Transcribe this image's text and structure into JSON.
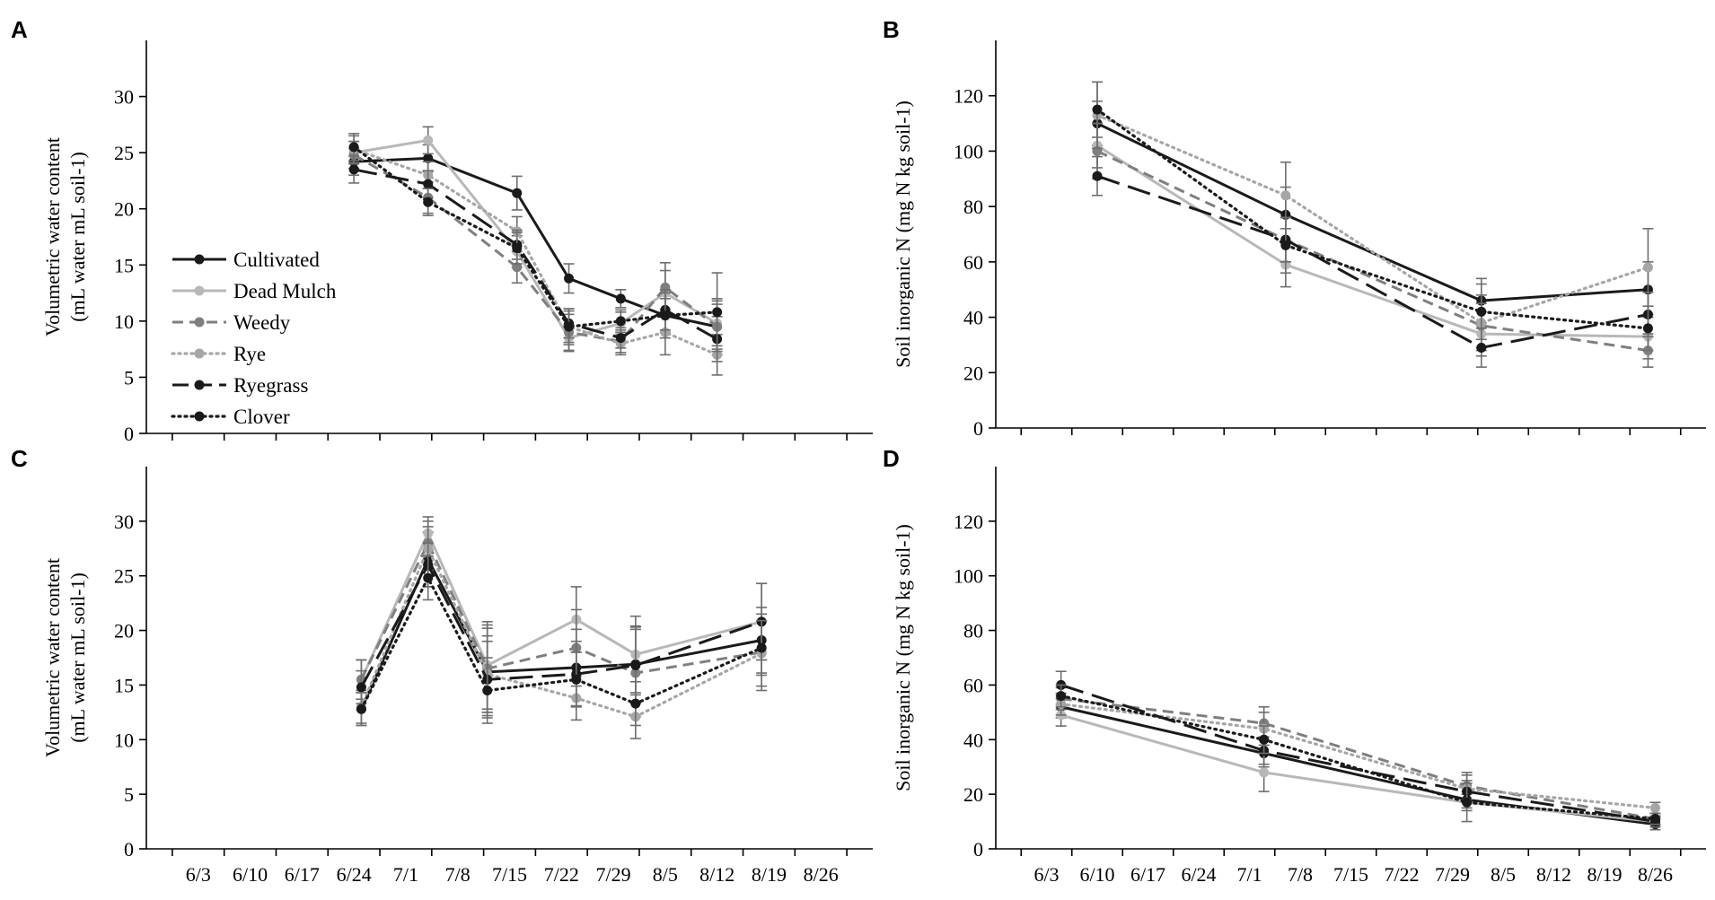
{
  "legend": [
    "Cultivated",
    "Dead Mulch",
    "Weedy",
    "Rye",
    "Ryegrass",
    "Clover"
  ],
  "styles": {
    "Cultivated": {
      "color": "#1a1a1a",
      "dash": "solid"
    },
    "Dead Mulch": {
      "color": "#b8b8b8",
      "dash": "solid"
    },
    "Weedy": {
      "color": "#7f7f7f",
      "dash": "dashed"
    },
    "Rye": {
      "color": "#a6a6a6",
      "dash": "dotted"
    },
    "Ryegrass": {
      "color": "#1a1a1a",
      "dash": "longdash"
    },
    "Clover": {
      "color": "#1a1a1a",
      "dash": "dotted"
    }
  },
  "chart_data": [
    {
      "panel": "A",
      "type": "line",
      "ylabel": "Volumetric water content",
      "ylabel_unit": "(mL water mL soil-1)",
      "ylim": [
        0,
        35
      ],
      "yticks": [
        0,
        5,
        10,
        15,
        20,
        25,
        30
      ],
      "xticks": [
        "6/3",
        "6/10",
        "6/17",
        "6/24",
        "7/1",
        "7/8",
        "7/15",
        "7/22",
        "7/29",
        "8/5",
        "8/12",
        "8/19",
        "8/26"
      ],
      "show_x_tick_labels": false,
      "x_unit": "day offset from 6/3",
      "series": [
        {
          "name": "Cultivated",
          "x": [
            21,
            31,
            43,
            50,
            57,
            63,
            70
          ],
          "values": [
            24.2,
            24.5,
            21.4,
            13.8,
            12.0,
            10.5,
            9.5
          ],
          "err": [
            1.2,
            1.2,
            1.5,
            1.3,
            0.8,
            1.5,
            2.5
          ]
        },
        {
          "name": "Dead Mulch",
          "x": [
            21,
            31,
            43,
            50,
            57,
            63,
            70
          ],
          "values": [
            25.0,
            26.1,
            16.2,
            8.5,
            9.8,
            12.5,
            9.8
          ],
          "err": [
            1.0,
            1.2,
            1.4,
            1.2,
            1.0,
            2.0,
            2.0
          ]
        },
        {
          "name": "Weedy",
          "x": [
            21,
            31,
            43,
            50,
            57,
            63,
            70
          ],
          "values": [
            24.8,
            21.0,
            14.8,
            9.0,
            8.2,
            13.0,
            9.5
          ],
          "err": [
            1.2,
            1.4,
            1.4,
            1.6,
            1.0,
            2.2,
            2.0
          ]
        },
        {
          "name": "Rye",
          "x": [
            21,
            31,
            43,
            50,
            57,
            63,
            70
          ],
          "values": [
            25.3,
            23.0,
            18.0,
            9.5,
            8.0,
            9.0,
            7.0
          ],
          "err": [
            1.2,
            1.2,
            1.3,
            1.4,
            1.0,
            2.0,
            1.8
          ]
        },
        {
          "name": "Ryegrass",
          "x": [
            21,
            31,
            43,
            50,
            57,
            63,
            70
          ],
          "values": [
            23.5,
            22.2,
            16.8,
            9.8,
            8.5,
            11.0,
            8.4
          ],
          "err": [
            1.2,
            1.2,
            1.3,
            1.3,
            0.9,
            1.8,
            2.0
          ]
        },
        {
          "name": "Clover",
          "x": [
            21,
            31,
            43,
            50,
            57,
            63,
            70
          ],
          "values": [
            25.5,
            20.6,
            16.5,
            9.5,
            10.0,
            10.5,
            10.8
          ],
          "err": [
            1.2,
            1.2,
            1.4,
            1.6,
            1.0,
            2.0,
            3.5
          ]
        }
      ]
    },
    {
      "panel": "B",
      "type": "line",
      "ylabel": "Soil inorganic N",
      "ylabel_unit": "(mg N kg soil-1)",
      "ylim": [
        0,
        140
      ],
      "yticks": [
        0,
        20,
        40,
        60,
        80,
        100,
        120
      ],
      "xticks": [
        "6/3",
        "6/10",
        "6/17",
        "6/24",
        "7/1",
        "7/8",
        "7/15",
        "7/22",
        "7/29",
        "8/5",
        "8/12",
        "8/19",
        "8/26"
      ],
      "show_x_tick_labels": false,
      "x_unit": "day offset from 6/3",
      "series": [
        {
          "name": "Cultivated",
          "x": [
            7,
            33,
            60,
            83
          ],
          "values": [
            110,
            77,
            46,
            50
          ],
          "err": [
            8,
            10,
            8,
            10
          ]
        },
        {
          "name": "Dead Mulch",
          "x": [
            7,
            33,
            60,
            83
          ],
          "values": [
            102,
            59,
            34,
            33
          ],
          "err": [
            8,
            8,
            8,
            8
          ]
        },
        {
          "name": "Weedy",
          "x": [
            7,
            33,
            60,
            83
          ],
          "values": [
            100,
            68,
            37,
            28
          ],
          "err": [
            10,
            8,
            8,
            6
          ]
        },
        {
          "name": "Rye",
          "x": [
            7,
            33,
            60,
            83
          ],
          "values": [
            113,
            84,
            38,
            58
          ],
          "err": [
            12,
            12,
            10,
            14
          ]
        },
        {
          "name": "Ryegrass",
          "x": [
            7,
            33,
            60,
            83
          ],
          "values": [
            91,
            68,
            29,
            41
          ],
          "err": [
            7,
            8,
            7,
            8
          ]
        },
        {
          "name": "Clover",
          "x": [
            7,
            33,
            60,
            83
          ],
          "values": [
            115,
            66,
            42,
            36
          ],
          "err": [
            10,
            10,
            10,
            8
          ]
        }
      ]
    },
    {
      "panel": "C",
      "type": "line",
      "ylabel": "Volumetric water content",
      "ylabel_unit": "(mL water mL soil-1)",
      "ylim": [
        0,
        35
      ],
      "yticks": [
        0,
        5,
        10,
        15,
        20,
        25,
        30
      ],
      "xticks": [
        "6/3",
        "6/10",
        "6/17",
        "6/24",
        "7/1",
        "7/8",
        "7/15",
        "7/22",
        "7/29",
        "8/5",
        "8/12",
        "8/19",
        "8/26"
      ],
      "show_x_tick_labels": true,
      "x_unit": "day offset from 6/3",
      "series": [
        {
          "name": "Cultivated",
          "x": [
            22,
            31,
            39,
            51,
            59,
            76
          ],
          "values": [
            12.8,
            26.5,
            16.2,
            16.6,
            16.9,
            19.1
          ],
          "err": [
            1.5,
            2.5,
            4.0,
            3.5,
            3.5,
            3.0
          ]
        },
        {
          "name": "Dead Mulch",
          "x": [
            22,
            31,
            39,
            51,
            59,
            76
          ],
          "values": [
            15.5,
            28.9,
            16.8,
            21.0,
            17.8,
            20.8
          ],
          "err": [
            1.8,
            1.5,
            4.0,
            3.0,
            3.5,
            3.5
          ]
        },
        {
          "name": "Weedy",
          "x": [
            22,
            31,
            39,
            51,
            59,
            76
          ],
          "values": [
            15.5,
            28.0,
            16.5,
            18.4,
            16.1,
            18.0
          ],
          "err": [
            1.8,
            2.0,
            4.0,
            3.5,
            4.0,
            3.5
          ]
        },
        {
          "name": "Rye",
          "x": [
            22,
            31,
            39,
            51,
            59,
            76
          ],
          "values": [
            13.0,
            27.5,
            16.0,
            13.8,
            12.1,
            17.9
          ],
          "err": [
            1.5,
            2.0,
            3.5,
            2.0,
            2.0,
            3.0
          ]
        },
        {
          "name": "Ryegrass",
          "x": [
            22,
            31,
            39,
            51,
            59,
            76
          ],
          "values": [
            14.8,
            26.0,
            15.5,
            16.0,
            16.8,
            20.8
          ],
          "err": [
            1.5,
            2.0,
            3.5,
            3.0,
            3.5,
            3.5
          ]
        },
        {
          "name": "Clover",
          "x": [
            22,
            31,
            39,
            51,
            59,
            76
          ],
          "values": [
            12.8,
            24.8,
            14.5,
            15.5,
            13.3,
            18.4
          ],
          "err": [
            1.5,
            2.0,
            3.0,
            2.5,
            2.0,
            2.5
          ]
        }
      ]
    },
    {
      "panel": "D",
      "type": "line",
      "ylabel": "Soil inorganic N",
      "ylabel_unit": "(mg N kg soil-1)",
      "ylim": [
        0,
        140
      ],
      "yticks": [
        0,
        20,
        40,
        60,
        80,
        100,
        120
      ],
      "xticks": [
        "6/3",
        "6/10",
        "6/17",
        "6/24",
        "7/1",
        "7/8",
        "7/15",
        "7/22",
        "7/29",
        "8/5",
        "8/12",
        "8/19",
        "8/26"
      ],
      "show_x_tick_labels": true,
      "x_unit": "day offset from 6/3",
      "series": [
        {
          "name": "Cultivated",
          "x": [
            2,
            30,
            58,
            84
          ],
          "values": [
            52,
            35,
            18,
            9
          ],
          "err": [
            4,
            5,
            3,
            2
          ]
        },
        {
          "name": "Dead Mulch",
          "x": [
            2,
            30,
            58,
            84
          ],
          "values": [
            49,
            28,
            17,
            10
          ],
          "err": [
            4,
            7,
            3,
            2
          ]
        },
        {
          "name": "Weedy",
          "x": [
            2,
            30,
            58,
            84
          ],
          "values": [
            55,
            46,
            23,
            11
          ],
          "err": [
            4,
            6,
            5,
            2
          ]
        },
        {
          "name": "Rye",
          "x": [
            2,
            30,
            58,
            84
          ],
          "values": [
            53,
            44,
            22,
            15
          ],
          "err": [
            4,
            6,
            5,
            2
          ]
        },
        {
          "name": "Ryegrass",
          "x": [
            2,
            30,
            58,
            84
          ],
          "values": [
            60,
            36,
            21,
            10
          ],
          "err": [
            5,
            5,
            4,
            2
          ]
        },
        {
          "name": "Clover",
          "x": [
            2,
            30,
            58,
            84
          ],
          "values": [
            56,
            40,
            17,
            11
          ],
          "err": [
            4,
            5,
            7,
            2
          ]
        }
      ]
    }
  ]
}
